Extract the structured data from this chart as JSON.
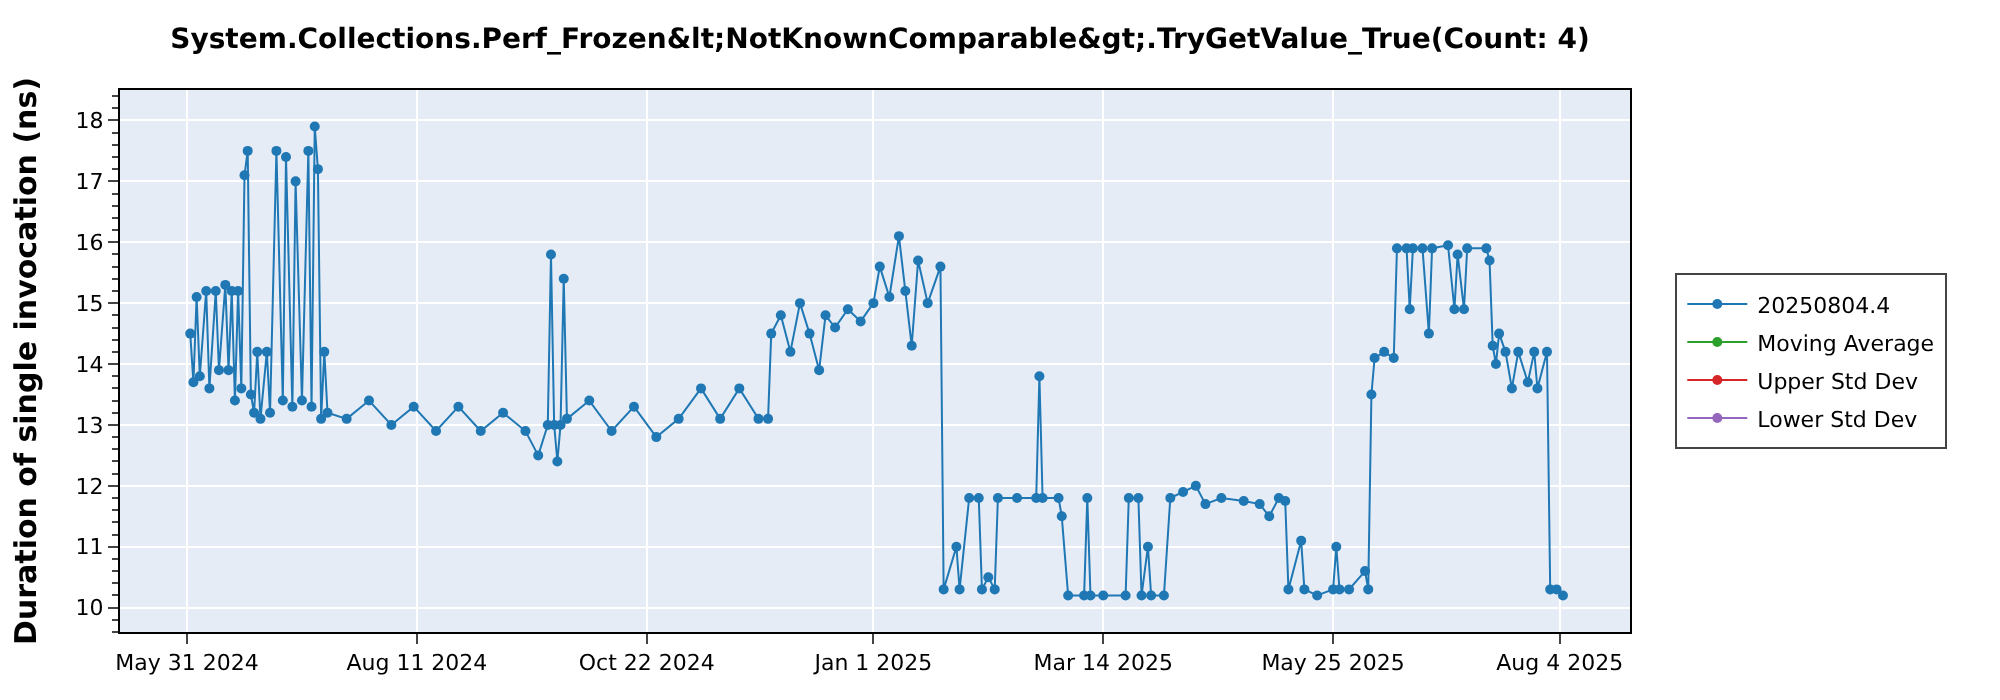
{
  "chart_data": {
    "type": "line",
    "title": "System.Collections.Perf_Frozen&lt;NotKnownComparable&gt;.TryGetValue_True(Count: 4)",
    "ylabel": "Duration of single invocation (ns)",
    "x": [
      "2024-06-01",
      "2024-06-02",
      "2024-06-03",
      "2024-06-04",
      "2024-06-06",
      "2024-06-07",
      "2024-06-09",
      "2024-06-10",
      "2024-06-12",
      "2024-06-13",
      "2024-06-14",
      "2024-06-15",
      "2024-06-16",
      "2024-06-17",
      "2024-06-18",
      "2024-06-19",
      "2024-06-20",
      "2024-06-21",
      "2024-06-22",
      "2024-06-23",
      "2024-06-25",
      "2024-06-26",
      "2024-06-28",
      "2024-06-30",
      "2024-07-01",
      "2024-07-03",
      "2024-07-04",
      "2024-07-06",
      "2024-07-08",
      "2024-07-09",
      "2024-07-10",
      "2024-07-11",
      "2024-07-12",
      "2024-07-13",
      "2024-07-14",
      "2024-07-20",
      "2024-07-27",
      "2024-08-03",
      "2024-08-10",
      "2024-08-17",
      "2024-08-24",
      "2024-08-31",
      "2024-09-07",
      "2024-09-14",
      "2024-09-18",
      "2024-09-21",
      "2024-09-22",
      "2024-09-23",
      "2024-09-24",
      "2024-09-25",
      "2024-09-26",
      "2024-09-27",
      "2024-10-04",
      "2024-10-11",
      "2024-10-18",
      "2024-10-25",
      "2024-11-01",
      "2024-11-08",
      "2024-11-14",
      "2024-11-20",
      "2024-11-26",
      "2024-11-29",
      "2024-11-30",
      "2024-12-03",
      "2024-12-06",
      "2024-12-09",
      "2024-12-12",
      "2024-12-15",
      "2024-12-17",
      "2024-12-20",
      "2024-12-24",
      "2024-12-28",
      "2025-01-01",
      "2025-01-03",
      "2025-01-06",
      "2025-01-09",
      "2025-01-11",
      "2025-01-13",
      "2025-01-15",
      "2025-01-18",
      "2025-01-22",
      "2025-01-23",
      "2025-01-27",
      "2025-01-28",
      "2025-01-31",
      "2025-02-03",
      "2025-02-04",
      "2025-02-06",
      "2025-02-08",
      "2025-02-09",
      "2025-02-15",
      "2025-02-21",
      "2025-02-22",
      "2025-02-23",
      "2025-02-28",
      "2025-03-01",
      "2025-03-03",
      "2025-03-08",
      "2025-03-09",
      "2025-03-10",
      "2025-03-14",
      "2025-03-21",
      "2025-03-22",
      "2025-03-25",
      "2025-03-26",
      "2025-03-28",
      "2025-03-29",
      "2025-04-02",
      "2025-04-04",
      "2025-04-08",
      "2025-04-12",
      "2025-04-15",
      "2025-04-20",
      "2025-04-27",
      "2025-05-02",
      "2025-05-05",
      "2025-05-08",
      "2025-05-10",
      "2025-05-11",
      "2025-05-15",
      "2025-05-16",
      "2025-05-20",
      "2025-05-25",
      "2025-05-26",
      "2025-05-27",
      "2025-05-30",
      "2025-06-04",
      "2025-06-05",
      "2025-06-06",
      "2025-06-07",
      "2025-06-10",
      "2025-06-13",
      "2025-06-14",
      "2025-06-17",
      "2025-06-18",
      "2025-06-19",
      "2025-06-22",
      "2025-06-24",
      "2025-06-25",
      "2025-06-30",
      "2025-07-02",
      "2025-07-03",
      "2025-07-05",
      "2025-07-06",
      "2025-07-12",
      "2025-07-13",
      "2025-07-14",
      "2025-07-15",
      "2025-07-16",
      "2025-07-18",
      "2025-07-20",
      "2025-07-22",
      "2025-07-25",
      "2025-07-27",
      "2025-07-28",
      "2025-07-31",
      "2025-08-01",
      "2025-08-03",
      "2025-08-05"
    ],
    "series": [
      {
        "name": "20250804.4",
        "color": "#1f77b4",
        "values": [
          14.5,
          13.7,
          15.1,
          13.8,
          15.2,
          13.6,
          15.2,
          13.9,
          15.3,
          13.9,
          15.2,
          13.4,
          15.2,
          13.6,
          17.1,
          17.5,
          13.5,
          13.2,
          14.2,
          13.1,
          14.2,
          13.2,
          17.5,
          13.4,
          17.4,
          13.3,
          17.0,
          13.4,
          17.5,
          13.3,
          17.9,
          17.2,
          13.1,
          14.2,
          13.2,
          13.1,
          13.4,
          13.0,
          13.3,
          12.9,
          13.3,
          12.9,
          13.2,
          12.9,
          12.5,
          13.0,
          15.8,
          13.0,
          12.4,
          13.0,
          15.4,
          13.1,
          13.4,
          12.9,
          13.3,
          12.8,
          13.1,
          13.6,
          13.1,
          13.6,
          13.1,
          13.1,
          14.5,
          14.8,
          14.2,
          15.0,
          14.5,
          13.9,
          14.8,
          14.6,
          14.9,
          14.7,
          15.0,
          15.6,
          15.1,
          16.1,
          15.2,
          14.3,
          15.7,
          15.0,
          15.6,
          10.3,
          11.0,
          10.3,
          11.8,
          11.8,
          10.3,
          10.5,
          10.3,
          11.8,
          11.8,
          11.8,
          13.8,
          11.8,
          11.8,
          11.5,
          10.2,
          10.2,
          11.8,
          10.2,
          10.2,
          10.2,
          11.8,
          11.8,
          10.2,
          11.0,
          10.2,
          10.2,
          11.8,
          11.9,
          12.0,
          11.7,
          11.8,
          11.75,
          11.7,
          11.5,
          11.8,
          11.75,
          10.3,
          11.1,
          10.3,
          10.2,
          10.3,
          11.0,
          10.3,
          10.3,
          10.6,
          10.3,
          13.5,
          14.1,
          14.2,
          14.1,
          15.9,
          15.9,
          14.9,
          15.9,
          15.9,
          14.5,
          15.9,
          15.95,
          14.9,
          15.8,
          14.9,
          15.9,
          15.9,
          15.7,
          14.3,
          14.0,
          14.5,
          14.2,
          13.6,
          14.2,
          13.7,
          14.2,
          13.6,
          14.2,
          10.3,
          10.3,
          10.2
        ]
      },
      {
        "name": "Moving Average",
        "color": "#2ca02c",
        "values": [
          null,
          null,
          null,
          null,
          null,
          null,
          null,
          null,
          null,
          null,
          null,
          null,
          null,
          null,
          null,
          null,
          null,
          null,
          null,
          null,
          null,
          null,
          null,
          null,
          null,
          null,
          null,
          null,
          null,
          null,
          null,
          null,
          null,
          null,
          null,
          null,
          null,
          null,
          null,
          null,
          null,
          null,
          null,
          null,
          null,
          null,
          null,
          null,
          null,
          null,
          null,
          null,
          null,
          null,
          null,
          null,
          null,
          null,
          null,
          null,
          null,
          null,
          null,
          null,
          null,
          null,
          null,
          null,
          null,
          null,
          null,
          null,
          null,
          null,
          null,
          null,
          null,
          null,
          null,
          null,
          null,
          null,
          null,
          null,
          null,
          null,
          null,
          null,
          null,
          null,
          null,
          null,
          null,
          null,
          null,
          null,
          null,
          null,
          null,
          null,
          null,
          null,
          null,
          null,
          null,
          null,
          null,
          null,
          null,
          null,
          null,
          null,
          null,
          null,
          null,
          null,
          null,
          null,
          null,
          null,
          null,
          null,
          null,
          null,
          null,
          null,
          null,
          null,
          null,
          null,
          null,
          null,
          null,
          null,
          null,
          null,
          null,
          null,
          null,
          null,
          null,
          null,
          null,
          null,
          null,
          null,
          null,
          null,
          null,
          null,
          null,
          null,
          null,
          null,
          null,
          null,
          null,
          null,
          null
        ]
      },
      {
        "name": "Upper Std Dev",
        "color": "#d62728",
        "values": [
          null,
          null,
          null,
          null,
          null,
          null,
          null,
          null,
          null,
          null,
          null,
          null,
          null,
          null,
          null,
          null,
          null,
          null,
          null,
          null,
          null,
          null,
          null,
          null,
          null,
          null,
          null,
          null,
          null,
          null,
          null,
          null,
          null,
          null,
          null,
          null,
          null,
          null,
          null,
          null,
          null,
          null,
          null,
          null,
          null,
          null,
          null,
          null,
          null,
          null,
          null,
          null,
          null,
          null,
          null,
          null,
          null,
          null,
          null,
          null,
          null,
          null,
          null,
          null,
          null,
          null,
          null,
          null,
          null,
          null,
          null,
          null,
          null,
          null,
          null,
          null,
          null,
          null,
          null,
          null,
          null,
          null,
          null,
          null,
          null,
          null,
          null,
          null,
          null,
          null,
          null,
          null,
          null,
          null,
          null,
          null,
          null,
          null,
          null,
          null,
          null,
          null,
          null,
          null,
          null,
          null,
          null,
          null,
          null,
          null,
          null,
          null,
          null,
          null,
          null,
          null,
          null,
          null,
          null,
          null,
          null,
          null,
          null,
          null,
          null,
          null,
          null,
          null,
          null,
          null,
          null,
          null,
          null,
          null,
          null,
          null,
          null,
          null,
          null,
          null,
          null,
          null,
          null,
          null,
          null,
          null,
          null,
          null,
          null,
          null,
          null,
          null,
          null,
          null,
          null,
          null,
          null,
          null,
          null
        ]
      },
      {
        "name": "Lower Std Dev",
        "color": "#9467bd",
        "values": [
          null,
          null,
          null,
          null,
          null,
          null,
          null,
          null,
          null,
          null,
          null,
          null,
          null,
          null,
          null,
          null,
          null,
          null,
          null,
          null,
          null,
          null,
          null,
          null,
          null,
          null,
          null,
          null,
          null,
          null,
          null,
          null,
          null,
          null,
          null,
          null,
          null,
          null,
          null,
          null,
          null,
          null,
          null,
          null,
          null,
          null,
          null,
          null,
          null,
          null,
          null,
          null,
          null,
          null,
          null,
          null,
          null,
          null,
          null,
          null,
          null,
          null,
          null,
          null,
          null,
          null,
          null,
          null,
          null,
          null,
          null,
          null,
          null,
          null,
          null,
          null,
          null,
          null,
          null,
          null,
          null,
          null,
          null,
          null,
          null,
          null,
          null,
          null,
          null,
          null,
          null,
          null,
          null,
          null,
          null,
          null,
          null,
          null,
          null,
          null,
          null,
          null,
          null,
          null,
          null,
          null,
          null,
          null,
          null,
          null,
          null,
          null,
          null,
          null,
          null,
          null,
          null,
          null,
          null,
          null,
          null,
          null,
          null,
          null,
          null,
          null,
          null,
          null,
          null,
          null,
          null,
          null,
          null,
          null,
          null,
          null,
          null,
          null,
          null,
          null,
          null,
          null,
          null,
          null,
          null,
          null,
          null,
          null,
          null,
          null,
          null,
          null,
          null,
          null,
          null,
          null,
          null,
          null,
          null
        ]
      }
    ],
    "xlim": [
      "2024-05-10",
      "2025-08-26"
    ],
    "xticks": [
      {
        "value": "2024-05-31",
        "label": "May 31 2024"
      },
      {
        "value": "2024-08-11",
        "label": "Aug 11 2024"
      },
      {
        "value": "2024-10-22",
        "label": "Oct 22 2024"
      },
      {
        "value": "2025-01-01",
        "label": "Jan 1 2025"
      },
      {
        "value": "2025-03-14",
        "label": "Mar 14 2025"
      },
      {
        "value": "2025-05-25",
        "label": "May 25 2025"
      },
      {
        "value": "2025-08-04",
        "label": "Aug 4 2025"
      }
    ],
    "ylim": [
      9.6,
      18.5
    ],
    "yticks": [
      10,
      11,
      12,
      13,
      14,
      15,
      16,
      17,
      18
    ],
    "grid": true,
    "legend": "right",
    "marker": "circle",
    "line_style": "solid"
  }
}
